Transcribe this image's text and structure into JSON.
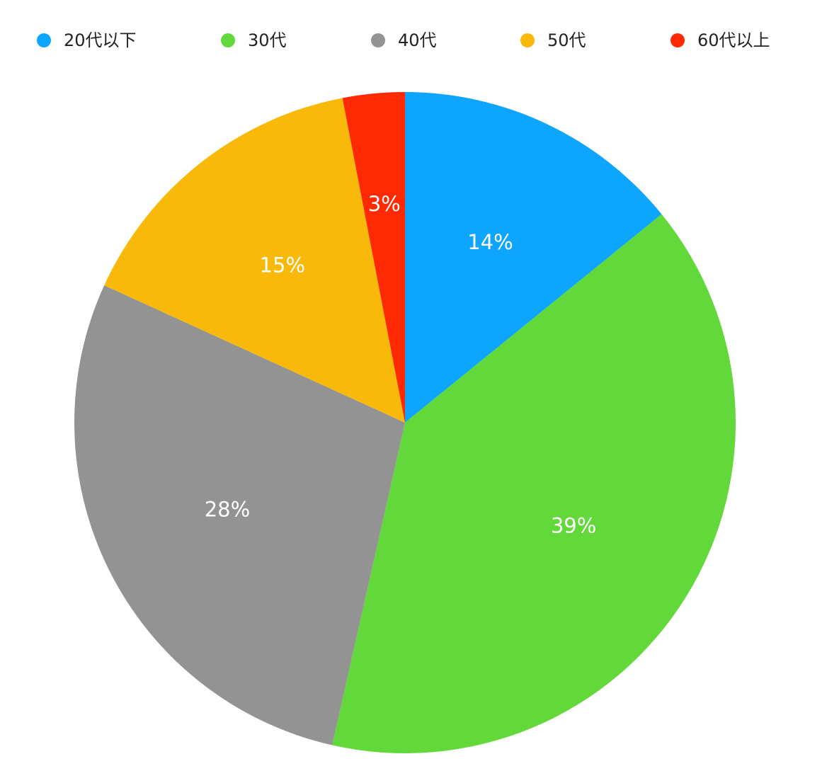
{
  "chart_data": {
    "type": "pie",
    "categories": [
      "20代以下",
      "30代",
      "40代",
      "50代",
      "60代以上"
    ],
    "values": [
      14,
      39,
      28,
      15,
      3
    ],
    "value_labels": [
      "14%",
      "39%",
      "28%",
      "15%",
      "3%"
    ],
    "colors": [
      "#0ea5ff",
      "#62d83a",
      "#939393",
      "#f9b90b",
      "#ff2a04"
    ],
    "legend": "top"
  }
}
